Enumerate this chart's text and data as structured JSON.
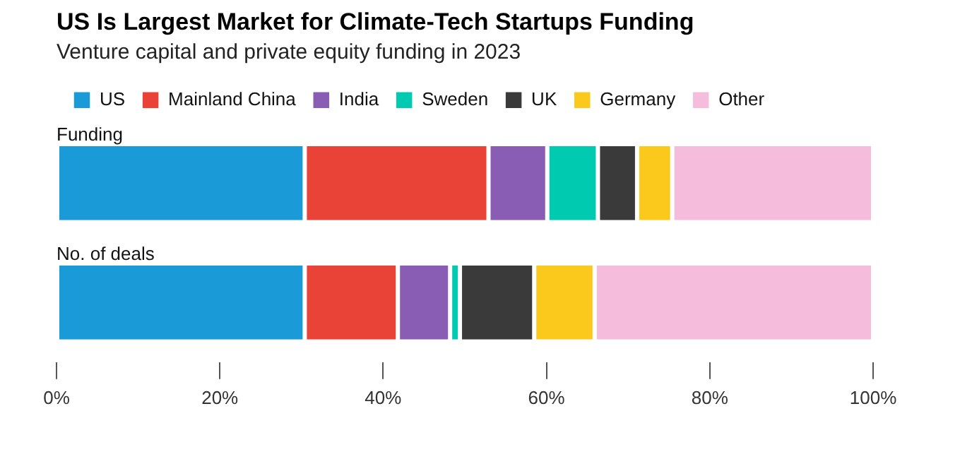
{
  "chart_data": {
    "type": "bar",
    "orientation": "horizontal",
    "stacked": true,
    "title": "US Is Largest Market for Climate-Tech Startups Funding",
    "subtitle": "Venture capital and private equity funding in 2023",
    "categories": [
      "Funding",
      "No. of deals"
    ],
    "series": [
      {
        "name": "US",
        "color": "#1a9ad6",
        "values": [
          30.4,
          30.4
        ]
      },
      {
        "name": "Mainland China",
        "color": "#e84336",
        "values": [
          22.5,
          11.4
        ]
      },
      {
        "name": "India",
        "color": "#8a5db5",
        "values": [
          7.2,
          6.4
        ]
      },
      {
        "name": "Sweden",
        "color": "#00cbb0",
        "values": [
          6.2,
          1.2
        ]
      },
      {
        "name": "UK",
        "color": "#3a3a3a",
        "values": [
          4.8,
          9.1
        ]
      },
      {
        "name": "Germany",
        "color": "#fbc91b",
        "values": [
          4.3,
          7.4
        ]
      },
      {
        "name": "Other",
        "color": "#f5bcdc",
        "values": [
          24.6,
          34.1
        ]
      }
    ],
    "xlim": [
      0,
      100
    ],
    "xticks": [
      {
        "value": 0,
        "label": "0%"
      },
      {
        "value": 20,
        "label": "20%"
      },
      {
        "value": 40,
        "label": "40%"
      },
      {
        "value": 60,
        "label": "60%"
      },
      {
        "value": 80,
        "label": "80%"
      },
      {
        "value": 100,
        "label": "100%"
      }
    ],
    "grid": false,
    "legend": "top left"
  }
}
